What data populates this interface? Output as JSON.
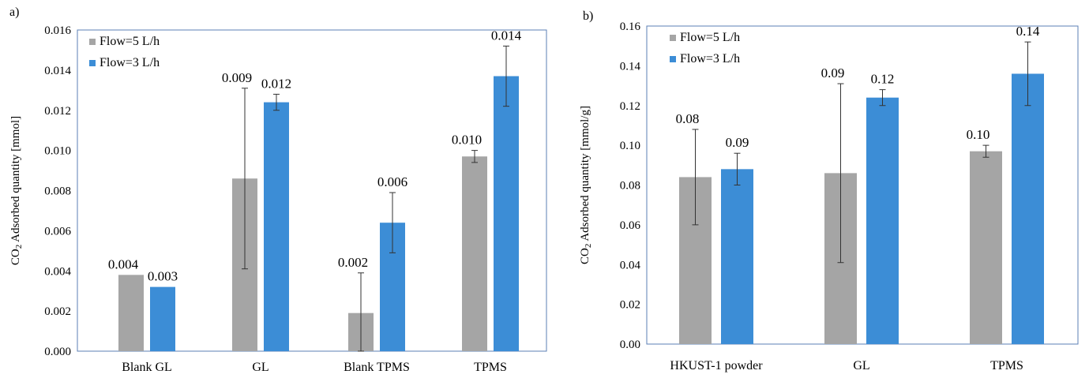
{
  "chart_data": [
    {
      "panel_label": "a)",
      "type": "bar",
      "ylabel_sub": "2",
      "ylabel_prefix": "CO",
      "ylabel_rest": " Adsorbed quantity [mmol]",
      "ylim": [
        0,
        0.016
      ],
      "yticks": [
        "0.000",
        "0.002",
        "0.004",
        "0.006",
        "0.008",
        "0.010",
        "0.012",
        "0.014",
        "0.016"
      ],
      "grid": false,
      "legend_position": "top-left",
      "categories": [
        "Blank GL",
        "GL",
        "Blank TPMS",
        "TPMS"
      ],
      "series": [
        {
          "name": "Flow=5 L/h",
          "color": "#a5a5a5",
          "values": [
            0.0038,
            0.0086,
            0.0019,
            0.0097
          ],
          "errors": [
            0.0,
            0.0045,
            0.002,
            0.0003
          ],
          "labels": [
            "0.004",
            "0.009",
            "0.002",
            "0.010"
          ]
        },
        {
          "name": "Flow=3 L/h",
          "color": "#3c8dd6",
          "values": [
            0.0032,
            0.0124,
            0.0064,
            0.0137
          ],
          "errors": [
            0.0,
            0.0004,
            0.0015,
            0.0015
          ],
          "labels": [
            "0.003",
            "0.012",
            "0.006",
            "0.014"
          ]
        }
      ]
    },
    {
      "panel_label": "b)",
      "type": "bar",
      "ylabel_sub": "2",
      "ylabel_prefix": "CO",
      "ylabel_rest": " Adsorbed quantity [mmol/g]",
      "ylim": [
        0,
        0.16
      ],
      "yticks": [
        "0.00",
        "0.02",
        "0.04",
        "0.06",
        "0.08",
        "0.10",
        "0.12",
        "0.14",
        "0.16"
      ],
      "grid": false,
      "legend_position": "top-left",
      "categories": [
        "HKUST-1 powder",
        "GL",
        "TPMS"
      ],
      "series": [
        {
          "name": "Flow=5 L/h",
          "color": "#a5a5a5",
          "values": [
            0.084,
            0.086,
            0.097
          ],
          "errors": [
            0.024,
            0.045,
            0.003
          ],
          "labels": [
            "0.08",
            "0.09",
            "0.10"
          ]
        },
        {
          "name": "Flow=3 L/h",
          "color": "#3c8dd6",
          "values": [
            0.088,
            0.124,
            0.136
          ],
          "errors": [
            0.008,
            0.004,
            0.016
          ],
          "labels": [
            "0.09",
            "0.12",
            "0.14"
          ]
        }
      ]
    }
  ]
}
